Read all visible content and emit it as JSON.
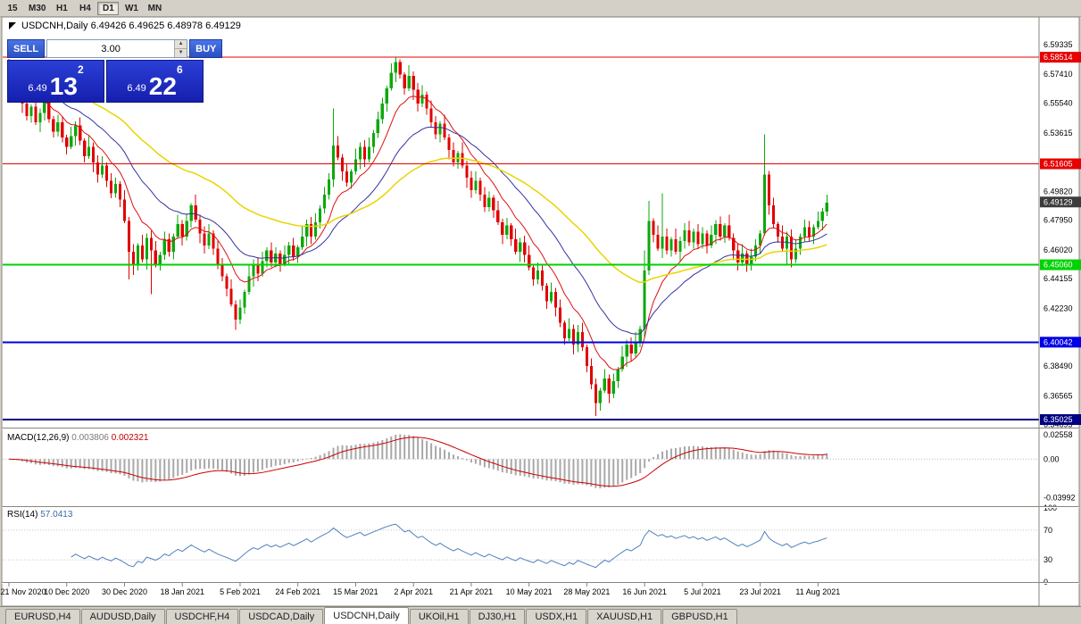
{
  "toolbar": {
    "timeframes": [
      {
        "label": "15",
        "active": false
      },
      {
        "label": "M30",
        "active": false
      },
      {
        "label": "H1",
        "active": false
      },
      {
        "label": "H4",
        "active": false
      },
      {
        "label": "D1",
        "active": true
      },
      {
        "label": "W1",
        "active": false
      },
      {
        "label": "MN",
        "active": false
      }
    ]
  },
  "chart": {
    "title": "USDCNH,Daily 6.49426 6.49625 6.48978 6.49129",
    "trade_panel": {
      "sell_label": "SELL",
      "buy_label": "BUY",
      "volume": "3.00",
      "sell_price": {
        "prefix": "6.49",
        "big": "13",
        "sup": "2"
      },
      "buy_price": {
        "prefix": "6.49",
        "big": "22",
        "sup": "6"
      }
    },
    "macd_label": {
      "name": "MACD(12,26,9)",
      "value1": "0.003806",
      "value2": "0.002321"
    },
    "rsi_label": {
      "name": "RSI(14)",
      "value": "57.0413"
    }
  },
  "tabs": {
    "active_index": 4,
    "items": [
      "EURUSD,H4",
      "AUDUSD,Daily",
      "USDCHF,H4",
      "USDCAD,Daily",
      "USDCNH,Daily",
      "UKOil,H1",
      "DJ30,H1",
      "USDX,H1",
      "XAUUSD,H1",
      "GBPUSD,H1"
    ]
  },
  "chart_data": {
    "type": "candlestick",
    "symbol": "USDCNH",
    "timeframe": "Daily",
    "ohlc_readout": {
      "open": "6.49426",
      "high": "6.49625",
      "low": "6.48978",
      "close": "6.49129"
    },
    "first_open": 6.58,
    "closes": [
      6.572,
      6.561,
      6.567,
      6.555,
      6.547,
      6.553,
      6.543,
      6.549,
      6.557,
      6.545,
      6.537,
      6.543,
      6.533,
      6.527,
      6.534,
      6.541,
      6.531,
      6.521,
      6.527,
      6.517,
      6.509,
      6.515,
      6.505,
      6.497,
      6.503,
      6.493,
      6.479,
      6.459,
      6.451,
      6.463,
      6.454,
      6.468,
      6.46,
      6.451,
      6.457,
      6.467,
      6.459,
      6.469,
      6.477,
      6.469,
      6.479,
      6.489,
      6.48,
      6.471,
      6.463,
      6.471,
      6.461,
      6.451,
      6.443,
      6.435,
      6.425,
      6.415,
      6.423,
      6.433,
      6.443,
      6.451,
      6.445,
      6.453,
      6.46,
      6.452,
      6.458,
      6.451,
      6.457,
      6.463,
      6.456,
      6.462,
      6.469,
      6.477,
      6.469,
      6.478,
      6.487,
      6.496,
      6.506,
      6.528,
      6.52,
      6.511,
      6.504,
      6.511,
      6.519,
      6.527,
      6.519,
      6.527,
      6.536,
      6.545,
      6.555,
      6.565,
      6.575,
      6.582,
      6.574,
      6.565,
      6.573,
      6.564,
      6.555,
      6.561,
      6.552,
      6.543,
      6.535,
      6.542,
      6.533,
      6.525,
      6.517,
      6.523,
      6.515,
      6.507,
      6.499,
      6.505,
      6.496,
      6.488,
      6.494,
      6.486,
      6.478,
      6.47,
      6.476,
      6.467,
      6.459,
      6.465,
      6.457,
      6.449,
      6.441,
      6.447,
      6.437,
      6.427,
      6.433,
      6.423,
      6.413,
      6.403,
      6.409,
      6.399,
      6.407,
      6.397,
      6.385,
      6.373,
      6.361,
      6.369,
      6.377,
      6.367,
      6.375,
      6.383,
      6.391,
      6.399,
      6.393,
      6.401,
      6.409,
      6.447,
      6.479,
      6.47,
      6.461,
      6.469,
      6.46,
      6.467,
      6.459,
      6.466,
      6.473,
      6.465,
      6.472,
      6.464,
      6.471,
      6.463,
      6.47,
      6.477,
      6.469,
      6.476,
      6.468,
      6.46,
      6.452,
      6.458,
      6.45,
      6.456,
      6.463,
      6.471,
      6.509,
      6.489,
      6.477,
      6.469,
      6.461,
      6.469,
      6.454,
      6.461,
      6.469,
      6.475,
      6.469,
      6.475,
      6.479,
      6.485,
      6.491
    ],
    "wick_high_pattern": [
      0.004,
      0.0018,
      0.006,
      0.0025,
      0.005,
      0.0015,
      0.007,
      0.003,
      0.0045,
      0.006,
      0.002,
      0.005
    ],
    "wick_low_pattern": [
      0.003,
      0.005,
      0.0015,
      0.006,
      0.0028,
      0.0042,
      0.0018,
      0.0065,
      0.005,
      0.0022,
      0.004,
      0.0032
    ],
    "wick_overrides": {
      "27": {
        "l": 6.441
      },
      "28": {
        "l": 6.444
      },
      "32": {
        "l": 6.4315
      },
      "51": {
        "l": 6.4085
      },
      "73": {
        "h": 6.552
      },
      "87": {
        "h": 6.5851
      },
      "88": {
        "h": 6.5838
      },
      "132": {
        "l": 6.3525
      },
      "133": {
        "l": 6.356
      },
      "143": {
        "h": 6.46,
        "l": 6.4035
      },
      "144": {
        "h": 6.492
      },
      "147": {
        "h": 6.497
      },
      "170": {
        "h": 6.535
      },
      "175": {
        "l": 6.4505
      },
      "184": {
        "h": 6.496
      }
    },
    "up_color": "#0ca80c",
    "down_color": "#e00000",
    "x_labels": [
      "21 Nov 2020",
      "10 Dec 2020",
      "30 Dec 2020",
      "18 Jan 2021",
      "5 Feb 2021",
      "24 Feb 2021",
      "15 Mar 2021",
      "2 Apr 2021",
      "21 Apr 2021",
      "10 May 2021",
      "28 May 2021",
      "16 Jun 2021",
      "5 Jul 2021",
      "23 Jul 2021",
      "11 Aug 2021"
    ],
    "x_label_step": 13,
    "price_axis": {
      "min": 6.3462,
      "max": 6.6095,
      "ticks": [
        "6.59335",
        "6.57410",
        "6.55540",
        "6.53615",
        "6.49820",
        "6.47950",
        "6.46020",
        "6.44155",
        "6.42230",
        "6.38490",
        "6.36565",
        "6.34695"
      ]
    },
    "levels": [
      {
        "label": "6.58514",
        "value": 6.58514,
        "color": "#e60000",
        "width": 1
      },
      {
        "label": "6.51605",
        "value": 6.51605,
        "color": "#e60000",
        "width": 1
      },
      {
        "label": "6.45060",
        "value": 6.4506,
        "color": "#00d200",
        "width": 2
      },
      {
        "label": "6.40042",
        "value": 6.40042,
        "color": "#0000e6",
        "width": 2
      },
      {
        "label": "6.35025",
        "value": 6.35025,
        "color": "#000082",
        "width": 2
      }
    ],
    "current_price": {
      "label": "6.49129",
      "value": 6.49129,
      "color": "#3c3c3c"
    },
    "moving_averages": [
      {
        "period": 10,
        "color": "#dd1111",
        "width": 1
      },
      {
        "period": 24,
        "color": "#3333a0",
        "width": 1
      },
      {
        "period": 55,
        "color": "#e8d500",
        "width": 1.5
      }
    ],
    "macd": {
      "fast": 12,
      "slow": 26,
      "signal": 9,
      "values_readout": [
        "0.003806",
        "0.002321"
      ],
      "histogram_color": "#a8a8a8",
      "signal_color": "#cc0000",
      "range": {
        "min": -0.048,
        "max": 0.03
      },
      "ticks": [
        "0.02558",
        "0.00",
        "-0.03992"
      ]
    },
    "rsi": {
      "period": 14,
      "readout": "57.0413",
      "color": "#4f81bd",
      "levels": [
        70,
        30
      ],
      "ticks": [
        100,
        70,
        30,
        0
      ]
    }
  }
}
